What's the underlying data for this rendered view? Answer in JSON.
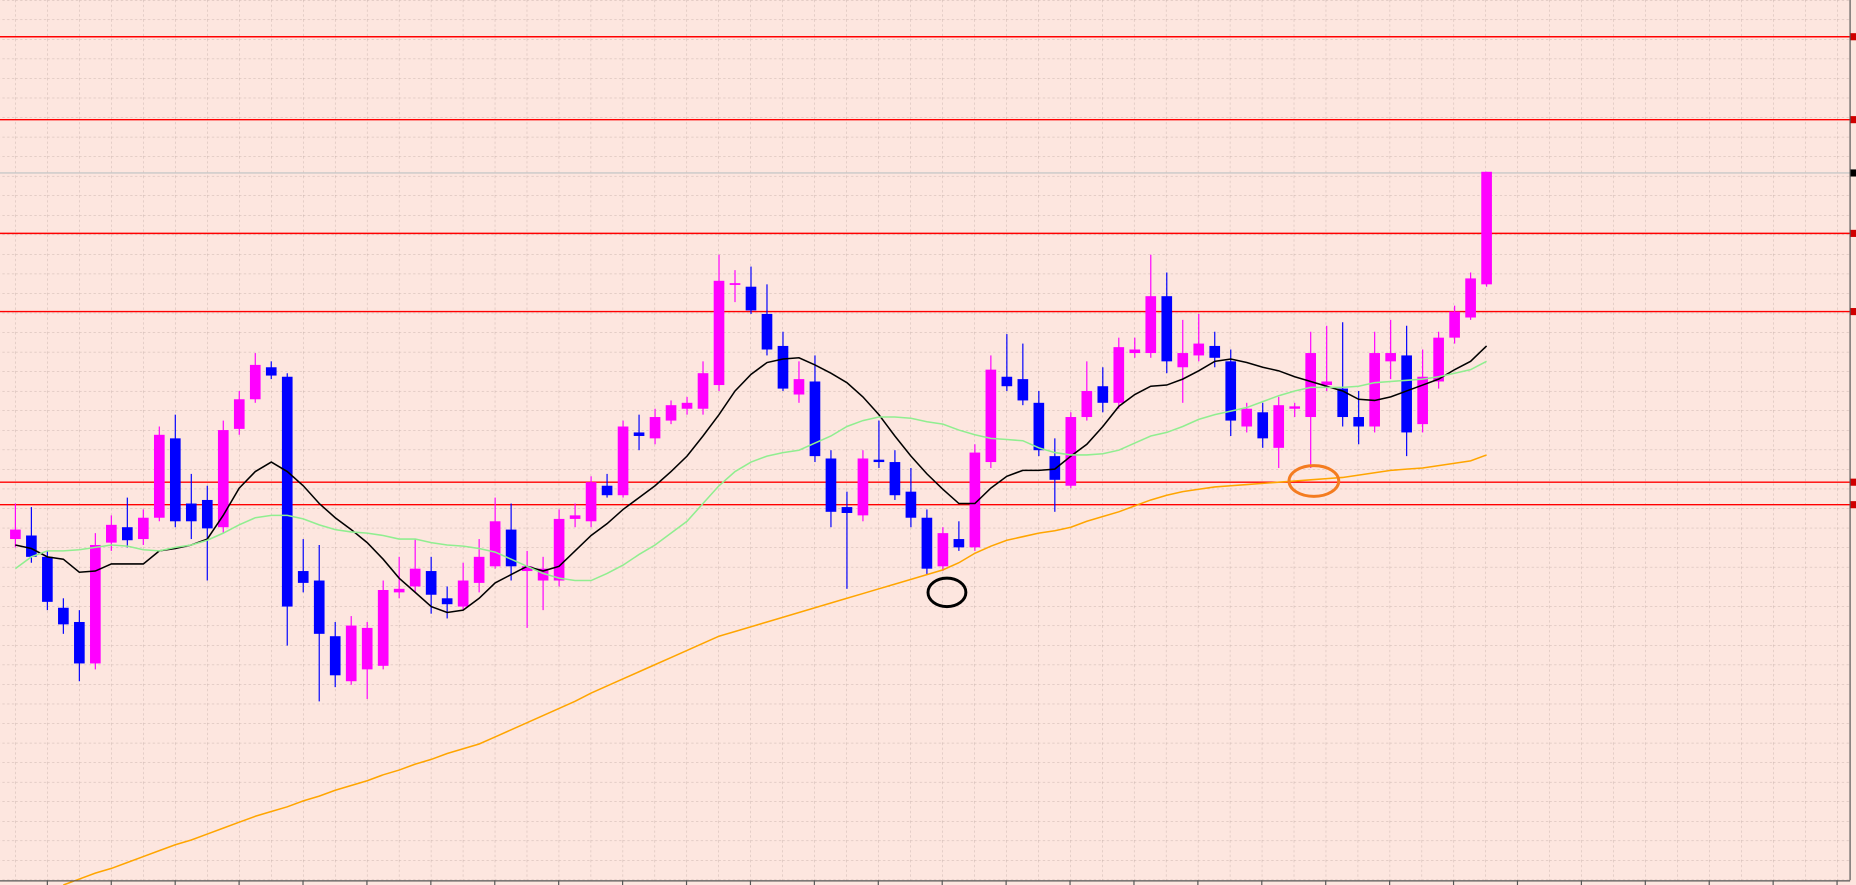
{
  "chart_data": {
    "type": "candlestick",
    "categories": [
      null,
      null,
      null,
      null,
      null,
      null,
      null,
      null,
      null,
      null,
      null,
      null,
      null,
      null,
      null,
      null,
      null,
      null,
      null,
      null,
      null,
      null,
      null,
      null,
      null,
      null,
      null,
      null,
      null,
      null,
      null,
      null,
      null,
      null,
      null,
      null,
      null,
      null,
      null,
      null,
      null,
      null,
      null,
      null,
      null,
      null,
      null,
      null,
      null,
      null,
      null,
      null,
      null,
      null,
      null,
      null,
      null,
      null,
      null,
      null,
      null,
      null,
      null,
      null,
      null,
      null,
      null,
      null,
      null,
      null,
      null,
      null,
      null,
      null,
      null,
      null,
      null,
      null,
      null,
      null,
      null,
      null,
      null,
      null,
      null,
      null,
      null,
      null,
      null,
      null,
      null,
      null,
      null
    ],
    "open": [
      295,
      298,
      280,
      237,
      225,
      190,
      292,
      305,
      295,
      313,
      380,
      325,
      328,
      305,
      388,
      413,
      440,
      432,
      268,
      260,
      213,
      175,
      185,
      188,
      250,
      255,
      268,
      245,
      238,
      258,
      272,
      303,
      268,
      260,
      260,
      312,
      310,
      340,
      332,
      385,
      380,
      395,
      405,
      405,
      425,
      510,
      508,
      485,
      458,
      417,
      428,
      363,
      322,
      315,
      362,
      360,
      335,
      313,
      272,
      295,
      288,
      360,
      432,
      430,
      410,
      365,
      340,
      398,
      424,
      410,
      452,
      452,
      500,
      440,
      450,
      458,
      445,
      390,
      402,
      372,
      405,
      398,
      425,
      422,
      398,
      390,
      445,
      450,
      392,
      428,
      465,
      482,
      510
    ],
    "high": [
      325,
      322,
      285,
      245,
      235,
      300,
      315,
      330,
      320,
      390,
      400,
      350,
      340,
      395,
      420,
      452,
      445,
      435,
      295,
      290,
      225,
      230,
      225,
      260,
      280,
      295,
      280,
      255,
      275,
      295,
      330,
      325,
      285,
      280,
      320,
      325,
      348,
      350,
      395,
      400,
      405,
      412,
      415,
      445,
      535,
      522,
      525,
      510,
      470,
      445,
      450,
      370,
      335,
      370,
      395,
      370,
      355,
      320,
      305,
      310,
      375,
      450,
      468,
      460,
      420,
      380,
      402,
      445,
      440,
      465,
      465,
      535,
      520,
      480,
      485,
      470,
      455,
      410,
      410,
      415,
      410,
      470,
      475,
      478,
      420,
      470,
      480,
      475,
      455,
      470,
      492,
      520,
      605
    ],
    "low": [
      288,
      275,
      235,
      215,
      175,
      185,
      285,
      288,
      290,
      310,
      305,
      295,
      260,
      300,
      383,
      410,
      430,
      205,
      250,
      158,
      170,
      172,
      160,
      185,
      245,
      250,
      232,
      228,
      235,
      250,
      270,
      260,
      220,
      235,
      255,
      305,
      305,
      330,
      330,
      370,
      375,
      392,
      400,
      400,
      420,
      495,
      485,
      450,
      420,
      410,
      360,
      305,
      253,
      310,
      355,
      328,
      305,
      265,
      268,
      285,
      285,
      355,
      420,
      408,
      365,
      318,
      338,
      395,
      402,
      405,
      448,
      448,
      435,
      410,
      445,
      440,
      382,
      385,
      372,
      355,
      398,
      355,
      420,
      390,
      375,
      385,
      430,
      365,
      385,
      422,
      460,
      480,
      508
    ],
    "close": [
      303,
      280,
      242,
      223,
      190,
      290,
      307,
      294,
      313,
      383,
      310,
      310,
      304,
      387,
      413,
      442,
      433,
      238,
      258,
      215,
      180,
      222,
      220,
      252,
      253,
      270,
      248,
      240,
      260,
      280,
      310,
      272,
      272,
      270,
      312,
      315,
      343,
      332,
      390,
      382,
      398,
      408,
      410,
      435,
      513,
      511,
      488,
      455,
      422,
      430,
      365,
      318,
      317,
      363,
      360,
      332,
      313,
      270,
      300,
      288,
      368,
      438,
      424,
      412,
      370,
      345,
      398,
      420,
      410,
      457,
      455,
      500,
      445,
      452,
      460,
      448,
      395,
      405,
      380,
      408,
      407,
      452,
      428,
      398,
      390,
      452,
      452,
      385,
      432,
      465,
      487,
      515,
      605
    ],
    "up_color": "#ff00ff",
    "down_color": "#0000ff",
    "moving_averages": [
      {
        "color": "#000000",
        "values": [
          290,
          287,
          280,
          278,
          267,
          268,
          274,
          274,
          274,
          285,
          287,
          290,
          295,
          315,
          338,
          352,
          360,
          352,
          340,
          325,
          313,
          303,
          292,
          278,
          262,
          250,
          238,
          233,
          235,
          245,
          258,
          265,
          272,
          268,
          272,
          285,
          298,
          308,
          320,
          330,
          340,
          352,
          365,
          382,
          400,
          420,
          434,
          444,
          447,
          448,
          442,
          435,
          427,
          415,
          400,
          382,
          365,
          350,
          337,
          325,
          325,
          338,
          348,
          353,
          353,
          354,
          365,
          375,
          390,
          407,
          417,
          424,
          425,
          430,
          437,
          445,
          447,
          444,
          440,
          437,
          432,
          428,
          424,
          420,
          413,
          412,
          415,
          420,
          425,
          430,
          438,
          445,
          458
        ]
      },
      {
        "color": "#90ee90",
        "values": [
          270,
          280,
          285,
          285,
          286,
          288,
          290,
          289,
          286,
          285,
          288,
          290,
          294,
          300,
          307,
          313,
          315,
          315,
          312,
          307,
          303,
          301,
          300,
          298,
          295,
          295,
          292,
          290,
          289,
          287,
          284,
          278,
          272,
          266,
          262,
          260,
          260,
          266,
          273,
          282,
          290,
          300,
          310,
          325,
          340,
          352,
          360,
          365,
          368,
          370,
          376,
          382,
          390,
          395,
          398,
          398,
          397,
          394,
          392,
          387,
          383,
          380,
          379,
          378,
          372,
          368,
          366,
          366,
          367,
          370,
          376,
          382,
          385,
          390,
          396,
          400,
          403,
          406,
          411,
          416,
          420,
          423,
          423,
          423,
          424,
          427,
          428,
          429,
          430,
          432,
          435,
          438,
          445
        ]
      },
      {
        "color": "#ffa500",
        "values": [
          null,
          null,
          null,
          3,
          8,
          13,
          17,
          22,
          27,
          32,
          37,
          41,
          46,
          51,
          56,
          61,
          65,
          69,
          74,
          78,
          83,
          87,
          91,
          96,
          100,
          105,
          109,
          114,
          118,
          122,
          128,
          134,
          140,
          146,
          152,
          158,
          165,
          171,
          177,
          183,
          189,
          195,
          201,
          207,
          213,
          217,
          221,
          225,
          229,
          233,
          237,
          241,
          245,
          249,
          253,
          257,
          261,
          265,
          269,
          275,
          283,
          289,
          294,
          297,
          300,
          302,
          305,
          310,
          314,
          318,
          323,
          328,
          332,
          335,
          337,
          339,
          340,
          341,
          342,
          343,
          344,
          345,
          346,
          347,
          349,
          351,
          353,
          354,
          355,
          357,
          359,
          361,
          366
        ]
      }
    ],
    "levels": [
      {
        "value": 719,
        "color": "#ff0000"
      },
      {
        "value": 649,
        "color": "#ff0000"
      },
      {
        "value": 604,
        "color": "#c8c8c8"
      },
      {
        "value": 553,
        "color": "#ff0000"
      },
      {
        "value": 487,
        "color": "#ff0000"
      },
      {
        "value": 343,
        "color": "#ff0000"
      },
      {
        "value": 324,
        "color": "#ff0000"
      }
    ],
    "ylim": [
      3,
      750
    ]
  }
}
